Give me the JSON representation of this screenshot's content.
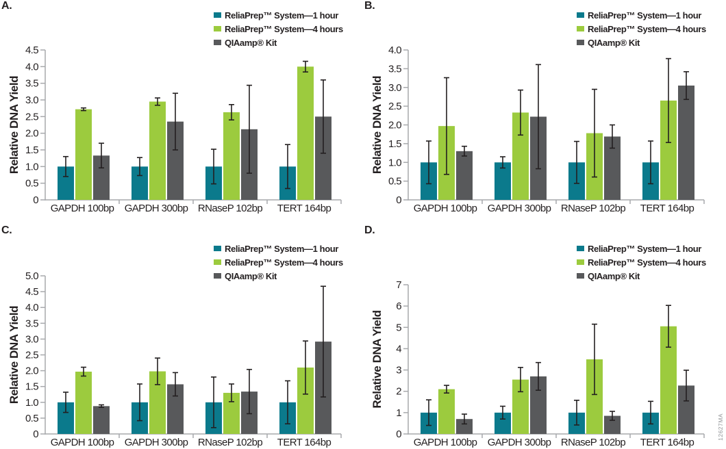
{
  "figure": {
    "ylabel": "Relative DNA Yield",
    "watermark": "12627MA",
    "categories": [
      "GAPDH 100bp",
      "GAPDH 300bp",
      "RNaseP 102bp",
      "TERT 164bp"
    ],
    "legend": [
      {
        "label": "ReliaPrep™ System—1 hour",
        "color": "#0B7A8C",
        "swatch_name": "teal-swatch-icon"
      },
      {
        "label": "ReliaPrep™ System—4 hours",
        "color": "#9CCB3E",
        "swatch_name": "green-swatch-icon"
      },
      {
        "label": "QIAamp® Kit",
        "color": "#58595B",
        "swatch_name": "gray-swatch-icon"
      }
    ],
    "colors": {
      "teal": "#0B7A8C",
      "green": "#9CCB3E",
      "gray": "#58595B",
      "axis": "#A7A9AC",
      "error_bar": "#231F20",
      "text": "#231F20",
      "watermark": "#939598"
    }
  },
  "chart_data": [
    {
      "type": "bar",
      "panel_label": "A.",
      "xlabel": "",
      "ylabel": "Relative DNA Yield",
      "categories": [
        "GAPDH 100bp",
        "GAPDH 300bp",
        "RNaseP 102bp",
        "TERT 164bp"
      ],
      "ylim": [
        0,
        4.5
      ],
      "yticks": [
        "4.5",
        "4.0",
        "3.5",
        "3.0",
        "2.5",
        "2.0",
        "1.5",
        "1.0",
        "0.5",
        "0"
      ],
      "grid": false,
      "legend_position": "top-right",
      "series": [
        {
          "name": "ReliaPrep™ System—1 hour",
          "color": "#0B7A8C",
          "values": [
            1.0,
            1.0,
            1.0,
            1.0
          ],
          "errors": [
            0.3,
            0.27,
            0.52,
            0.66
          ]
        },
        {
          "name": "ReliaPrep™ System—4 hours",
          "color": "#9CCB3E",
          "values": [
            2.72,
            2.95,
            2.63,
            4.0
          ],
          "errors": [
            0.04,
            0.11,
            0.23,
            0.16
          ]
        },
        {
          "name": "QIAamp® Kit",
          "color": "#58595B",
          "values": [
            1.33,
            2.35,
            2.12,
            2.5
          ],
          "errors": [
            0.37,
            0.85,
            1.32,
            1.1
          ]
        }
      ]
    },
    {
      "type": "bar",
      "panel_label": "B.",
      "xlabel": "",
      "ylabel": "Relative DNA Yield",
      "categories": [
        "GAPDH 100bp",
        "GAPDH 300bp",
        "RNaseP 102bp",
        "TERT 164bp"
      ],
      "ylim": [
        0,
        4.0
      ],
      "yticks": [
        "4.0",
        "3.5",
        "3.0",
        "2.5",
        "2.0",
        "1.5",
        "1.0",
        "0.5",
        "0"
      ],
      "grid": false,
      "legend_position": "top-right",
      "series": [
        {
          "name": "ReliaPrep™ System—1 hour",
          "color": "#0B7A8C",
          "values": [
            1.0,
            1.0,
            1.0,
            1.0
          ],
          "errors": [
            0.57,
            0.15,
            0.56,
            0.57
          ]
        },
        {
          "name": "ReliaPrep™ System—4 hours",
          "color": "#9CCB3E",
          "values": [
            1.97,
            2.33,
            1.78,
            2.65
          ],
          "errors": [
            1.29,
            0.6,
            1.17,
            1.12
          ]
        },
        {
          "name": "QIAamp® Kit",
          "color": "#58595B",
          "values": [
            1.3,
            2.22,
            1.69,
            3.05
          ],
          "errors": [
            0.13,
            1.39,
            0.31,
            0.37
          ]
        }
      ]
    },
    {
      "type": "bar",
      "panel_label": "C.",
      "xlabel": "",
      "ylabel": "Relative DNA Yield",
      "categories": [
        "GAPDH 100bp",
        "GAPDH 300bp",
        "RNaseP 102bp",
        "TERT 164bp"
      ],
      "ylim": [
        0,
        5.0
      ],
      "yticks": [
        "5.0",
        "4.5",
        "4.0",
        "3.5",
        "3.0",
        "2.5",
        "2.0",
        "1.5",
        "1.0",
        "0.5",
        "0"
      ],
      "grid": false,
      "legend_position": "top-right",
      "series": [
        {
          "name": "ReliaPrep™ System—1 hour",
          "color": "#0B7A8C",
          "values": [
            1.0,
            1.0,
            1.0,
            1.0
          ],
          "errors": [
            0.32,
            0.58,
            0.8,
            0.68
          ]
        },
        {
          "name": "ReliaPrep™ System—4 hours",
          "color": "#9CCB3E",
          "values": [
            1.97,
            1.98,
            1.3,
            2.1
          ],
          "errors": [
            0.14,
            0.42,
            0.28,
            0.84
          ]
        },
        {
          "name": "QIAamp® Kit",
          "color": "#58595B",
          "values": [
            0.88,
            1.57,
            1.34,
            2.92
          ],
          "errors": [
            0.04,
            0.37,
            0.7,
            1.75
          ]
        }
      ]
    },
    {
      "type": "bar",
      "panel_label": "D.",
      "xlabel": "",
      "ylabel": "Relative DNA Yield",
      "categories": [
        "GAPDH 100bp",
        "GAPDH 300bp",
        "RNaseP 102bp",
        "TERT 164bp"
      ],
      "ylim": [
        0,
        7
      ],
      "yticks": [
        "7",
        "6",
        "5",
        "4",
        "3",
        "2",
        "1",
        "0"
      ],
      "grid": false,
      "legend_position": "top-right",
      "series": [
        {
          "name": "ReliaPrep™ System—1 hour",
          "color": "#0B7A8C",
          "values": [
            1.0,
            1.0,
            1.0,
            1.0
          ],
          "errors": [
            0.6,
            0.3,
            0.58,
            0.53
          ]
        },
        {
          "name": "ReliaPrep™ System—4 hours",
          "color": "#9CCB3E",
          "values": [
            2.1,
            2.55,
            3.5,
            5.05
          ],
          "errors": [
            0.18,
            0.57,
            1.65,
            0.98
          ]
        },
        {
          "name": "QIAamp® Kit",
          "color": "#58595B",
          "values": [
            0.7,
            2.7,
            0.85,
            2.27
          ],
          "errors": [
            0.23,
            0.65,
            0.21,
            0.72
          ]
        }
      ]
    }
  ]
}
